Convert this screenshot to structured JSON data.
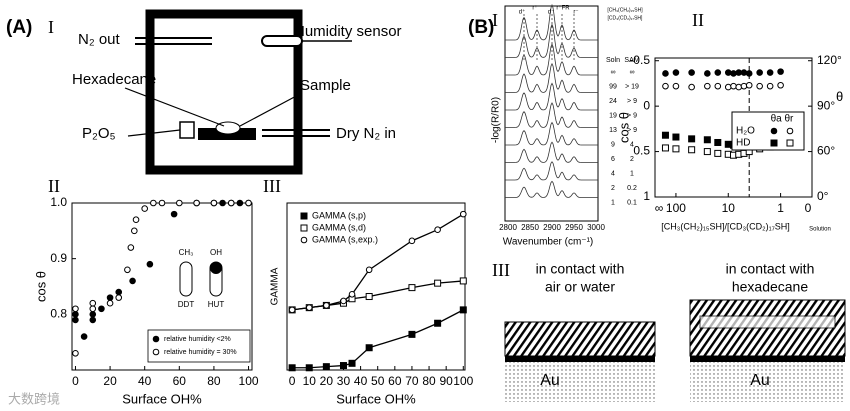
{
  "panel_a": {
    "label": "(A)",
    "numeral": "I",
    "labels": [
      "N₂ out",
      "Humidity sensor",
      "Hexadecane",
      "Sample",
      "P₂O₅",
      "Dry N₂ in"
    ]
  },
  "panel_b": {
    "label": "(B)",
    "numeral": "I"
  },
  "spectra": {
    "ylabel": "-log(R/R0)",
    "xlabel": "Wavenumber (cm⁻¹)",
    "xticks": [
      "2800",
      "2850",
      "2900",
      "2950",
      "3000"
    ],
    "peaks": [
      "d⁺",
      "r⁺",
      "d⁻",
      "r⁺FR",
      "r⁻"
    ],
    "header": [
      "[CH₃(CH₂)₁₅SH]",
      "[CD₃(CD₂)₁₇SH]"
    ],
    "columns": [
      "Soln",
      "SAM"
    ],
    "rows": [
      [
        "∞",
        "∞"
      ],
      [
        "99",
        "> 19"
      ],
      [
        "24",
        "> 9"
      ],
      [
        "19",
        "> 9"
      ],
      [
        "13",
        "> 9"
      ],
      [
        "9",
        "4"
      ],
      [
        "6",
        "2"
      ],
      [
        "4",
        "1"
      ],
      [
        "2",
        "0.2"
      ],
      [
        "1",
        "0.1"
      ]
    ]
  },
  "inset": {
    "labels": [
      "CH₃",
      "OH",
      "DDT",
      "HUT"
    ]
  },
  "chart_data": [
    {
      "type": "scatter",
      "numeral": "II",
      "xlabel": "Surface OH%",
      "ylabel": "cos θ",
      "xlim": [
        -2,
        102
      ],
      "ylim": [
        0.7,
        1.0
      ],
      "xticks": [
        0,
        20,
        40,
        60,
        80,
        100
      ],
      "yticks": [
        0.8,
        0.9,
        {
          "value": 1,
          "label": "1.0"
        }
      ],
      "series": [
        {
          "name": "relative humidity <2%",
          "color": "#000000",
          "marker": "circle",
          "filled": true,
          "x": [
            0,
            0,
            5,
            10,
            10,
            15,
            20,
            25,
            33,
            43,
            57,
            70,
            80,
            85,
            90,
            95,
            100
          ],
          "values": [
            0.8,
            0.79,
            0.76,
            0.8,
            0.79,
            0.81,
            0.83,
            0.84,
            0.86,
            0.89,
            0.98,
            1,
            1,
            1,
            1,
            1,
            1
          ]
        },
        {
          "name": "relative humidity = 30%",
          "color": "#000000",
          "marker": "circle",
          "filled": false,
          "x": [
            0,
            0,
            10,
            10,
            20,
            25,
            30,
            32,
            34,
            35,
            40,
            45,
            50,
            60,
            70,
            80,
            90,
            100
          ],
          "values": [
            0.73,
            0.81,
            0.82,
            0.81,
            0.82,
            0.83,
            0.88,
            0.92,
            0.95,
            0.97,
            0.99,
            1,
            1,
            1,
            1,
            1,
            1,
            1
          ]
        }
      ]
    },
    {
      "type": "line",
      "numeral": "III",
      "xlabel": "Surface OH%",
      "ylabel": "GAMMA",
      "xlim": [
        -3,
        101
      ],
      "ylim": [
        0,
        75
      ],
      "xticks": [
        0,
        10,
        20,
        30,
        40,
        50,
        60,
        70,
        80,
        90,
        100
      ],
      "series": [
        {
          "name": "GAMMA (s,p)",
          "color": "#000000",
          "marker": "square",
          "filled": true,
          "x": [
            0,
            10,
            20,
            30,
            35,
            45,
            70,
            85,
            100
          ],
          "values": [
            1,
            1,
            1.5,
            2,
            3,
            10,
            16,
            21,
            27
          ]
        },
        {
          "name": "GAMMA (s,d)",
          "color": "#000000",
          "marker": "square",
          "filled": false,
          "x": [
            0,
            10,
            20,
            30,
            35,
            45,
            70,
            85,
            100
          ],
          "values": [
            27,
            28,
            29,
            30,
            32,
            33,
            37,
            39,
            40
          ]
        },
        {
          "name": "GAMMA (s,exp.)",
          "color": "#000000",
          "marker": "circle",
          "filled": false,
          "x": [
            0,
            10,
            20,
            30,
            35,
            45,
            70,
            85,
            100
          ],
          "values": [
            27,
            28,
            29,
            31,
            34,
            45,
            58,
            63,
            70
          ]
        }
      ]
    },
    {
      "type": "scatter",
      "numeral": "II",
      "xlabel": "[CH₃(CH₂)₁₅SH]/[CD₃(CD₂)₁₇SH]",
      "xlabel_suffix": "Solution",
      "ylabel": "cos θ",
      "y2label": "θ",
      "x_end_labels": [
        "∞",
        "0"
      ],
      "reference_x": 0.6,
      "xlim": [
        2.4,
        -0.6
      ],
      "ylim": [
        1,
        -0.53
      ],
      "xticks": [
        {
          "value": 2,
          "label": "100"
        },
        {
          "value": 1,
          "label": "10"
        },
        {
          "value": 0,
          "label": "1"
        }
      ],
      "yticks": [
        -0.5,
        0,
        0.5,
        1
      ],
      "y2ticks": [
        {
          "value": 120,
          "label": "120°"
        },
        {
          "value": 90,
          "label": "90°"
        },
        {
          "value": 60,
          "label": "60°"
        },
        {
          "value": 0,
          "label": "0°"
        }
      ],
      "legend": {
        "header": "θa θr",
        "rows": [
          "H₂O",
          "HD"
        ]
      },
      "series": [
        {
          "color": "#000000",
          "marker": "circle",
          "filled": true,
          "x": [
            2.2,
            2.0,
            1.7,
            1.4,
            1.2,
            1.0,
            0.9,
            0.8,
            0.7,
            0.6,
            0.4,
            0.2,
            0
          ],
          "values": [
            -0.36,
            -0.37,
            -0.37,
            -0.36,
            -0.37,
            -0.37,
            -0.36,
            -0.37,
            -0.37,
            -0.36,
            -0.37,
            -0.37,
            -0.38
          ]
        },
        {
          "color": "#000000",
          "marker": "circle",
          "filled": false,
          "x": [
            2.2,
            2.0,
            1.7,
            1.4,
            1.2,
            1.0,
            0.9,
            0.8,
            0.7,
            0.6,
            0.4,
            0.2,
            0
          ],
          "values": [
            -0.22,
            -0.22,
            -0.21,
            -0.22,
            -0.22,
            -0.21,
            -0.22,
            -0.21,
            -0.22,
            -0.23,
            -0.22,
            -0.22,
            -0.23
          ]
        },
        {
          "color": "#000000",
          "marker": "square",
          "filled": true,
          "x": [
            2.2,
            2.0,
            1.7,
            1.4,
            1.2,
            1.0,
            0.9,
            0.8,
            0.7,
            0.6,
            0.4,
            0.2,
            0
          ],
          "values": [
            0.32,
            0.34,
            0.36,
            0.37,
            0.4,
            0.42,
            0.43,
            0.42,
            0.41,
            0.38,
            0.36,
            0.34,
            0.33
          ]
        },
        {
          "color": "#000000",
          "marker": "square",
          "filled": false,
          "x": [
            2.2,
            2.0,
            1.7,
            1.4,
            1.2,
            1.0,
            0.9,
            0.8,
            0.7,
            0.6,
            0.4,
            0.2,
            0
          ],
          "values": [
            0.46,
            0.47,
            0.48,
            0.5,
            0.52,
            0.53,
            0.54,
            0.53,
            0.52,
            0.5,
            0.47,
            0.45,
            0.43
          ]
        }
      ]
    }
  ],
  "models": {
    "numeral": "III",
    "left": [
      "in contact with",
      "air or water"
    ],
    "right": [
      "in contact with",
      "hexadecane"
    ],
    "substrate": [
      "Au",
      "Au"
    ]
  },
  "watermark": "大数跨境"
}
